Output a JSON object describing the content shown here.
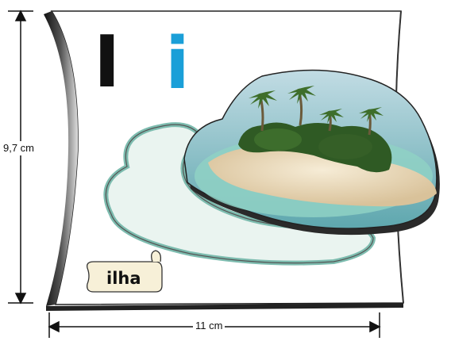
{
  "dimensions": {
    "height_label": "9,7 cm",
    "width_label": "11 cm"
  },
  "letters": {
    "uppercase": "I",
    "lowercase": "i"
  },
  "word_tag": {
    "label": "ilha"
  },
  "colors": {
    "lowercase_letter": "#1a9fd8",
    "sea": "#9fd8d2",
    "sand": "#eadcc0",
    "palms": "#2f5a24"
  },
  "illustration": {
    "subject": "tropical-island-with-palm-trees"
  }
}
